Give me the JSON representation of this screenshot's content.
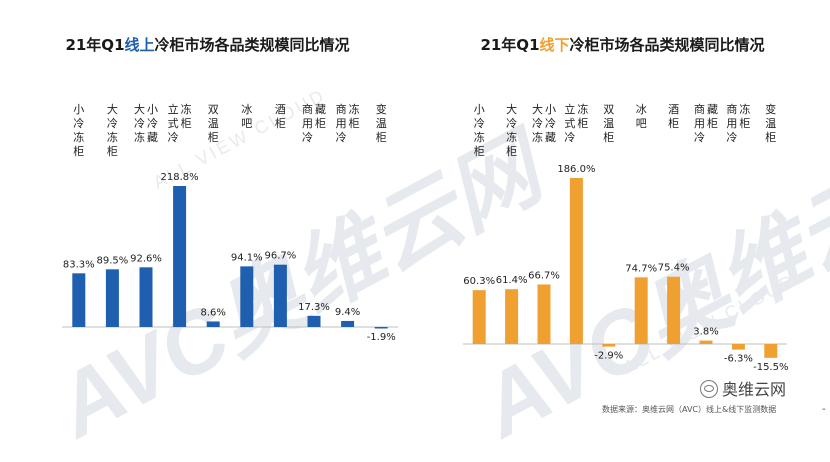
{
  "watermark": {
    "text": "AVC奥维云网",
    "sub": "ALL VIEW CLOUD"
  },
  "source_text": "数据来源：奥维云网（AVC）线上&线下监测数据",
  "brand_text": "奥维云网",
  "edge_mark": "-",
  "chart_data": [
    {
      "type": "bar",
      "title_parts": {
        "prefix": "21年Q1",
        "highlight": "线上",
        "suffix": "冷柜市场各品类规模同比情况"
      },
      "highlight_color": "#1f5fb0",
      "bar_color": "#1f5fb0",
      "categories": [
        "小冷冻柜",
        "大冷冻柜",
        "大冷冻小冷藏",
        "立式冷冻柜",
        "双温柜",
        "冰吧",
        "酒柜",
        "商用冷藏柜",
        "商用冷冻柜",
        "变温柜"
      ],
      "values": [
        83.3,
        89.5,
        92.6,
        218.8,
        8.6,
        94.1,
        96.7,
        17.3,
        9.4,
        -1.9
      ],
      "data_labels": [
        "83.3%",
        "89.5%",
        "92.6%",
        "218.8%",
        "8.6%",
        "94.1%",
        "96.7%",
        "17.3%",
        "9.4%",
        "-1.9%"
      ],
      "grid": false
    },
    {
      "type": "bar",
      "title_parts": {
        "prefix": "21年Q1",
        "highlight": "线下",
        "suffix": "冷柜市场各品类规模同比情况"
      },
      "highlight_color": "#f0a030",
      "bar_color": "#f0a030",
      "categories": [
        "小冷冻柜",
        "大冷冻柜",
        "大冷冻小冷藏",
        "立式冷冻柜",
        "双温柜",
        "冰吧",
        "酒柜",
        "商用冷藏柜",
        "商用冷冻柜",
        "变温柜"
      ],
      "values": [
        60.3,
        61.4,
        66.7,
        186.0,
        -2.9,
        74.7,
        75.4,
        3.8,
        -6.3,
        -15.5
      ],
      "data_labels": [
        "60.3%",
        "61.4%",
        "66.7%",
        "186.0%",
        "-2.9%",
        "74.7%",
        "75.4%",
        "3.8%",
        "-6.3%",
        "-15.5%"
      ],
      "grid": false
    }
  ]
}
